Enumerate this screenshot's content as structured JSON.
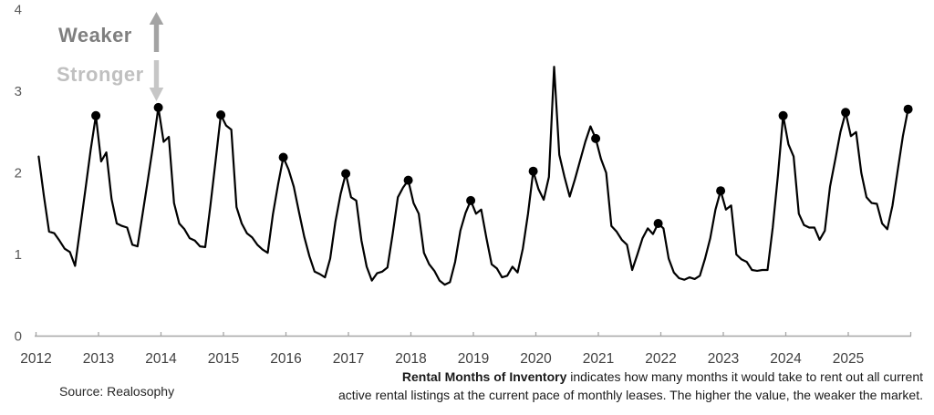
{
  "annotations": {
    "weaker_label": "Weaker",
    "stronger_label": "Stronger",
    "weaker_arrow_icon": "up-arrow",
    "stronger_arrow_icon": "down-arrow"
  },
  "source_note": "Source: Realosophy",
  "caption": {
    "bold_lead": "Rental Months of Inventory",
    "line1_rest": " indicates how many months it would take to rent out all current",
    "line2": "active rental listings at the current pace of monthly leases. The higher the value, the weaker the market."
  },
  "palette": {
    "line": "#000000",
    "marker": "#000000",
    "axis": "#a6a6a6",
    "x_label": "#404040",
    "y_label": "#595959",
    "weaker_text": "#7f7f7f",
    "weaker_arrow": "#a3a3a3",
    "stronger_text": "#c0c0c0",
    "stronger_arrow": "#c6c6c6"
  },
  "chart_data": {
    "type": "line",
    "title": "Rental Months of Inventory",
    "xlabel": "",
    "ylabel": "",
    "x_unit": "month",
    "x_start": "2012-01",
    "x_end": "2025-12",
    "ylim": [
      0,
      4
    ],
    "y_tick_labels": [
      "0",
      "1",
      "2",
      "3",
      "4"
    ],
    "x_tick_labels": [
      "2012",
      "2013",
      "2014",
      "2015",
      "2016",
      "2017",
      "2018",
      "2019",
      "2020",
      "2021",
      "2022",
      "2023",
      "2024",
      "2025"
    ],
    "gridlines": false,
    "legend": "none",
    "monthly_values_jan_to_dec_by_year": {
      "2012": [
        2.2,
        1.72,
        1.28,
        1.26,
        1.17,
        1.07,
        1.03,
        0.86,
        1.33,
        1.8,
        2.28,
        2.7
      ],
      "2013": [
        2.14,
        2.25,
        1.68,
        1.38,
        1.35,
        1.33,
        1.12,
        1.1,
        1.51,
        1.92,
        2.34,
        2.8
      ],
      "2014": [
        2.38,
        2.44,
        1.63,
        1.38,
        1.31,
        1.2,
        1.17,
        1.1,
        1.09,
        1.6,
        2.15,
        2.71
      ],
      "2015": [
        2.58,
        2.53,
        1.58,
        1.38,
        1.26,
        1.21,
        1.12,
        1.06,
        1.02,
        1.49,
        1.86,
        2.19
      ],
      "2016": [
        2.04,
        1.83,
        1.52,
        1.22,
        0.98,
        0.79,
        0.76,
        0.72,
        0.95,
        1.4,
        1.74,
        1.99
      ],
      "2017": [
        1.7,
        1.66,
        1.17,
        0.85,
        0.68,
        0.77,
        0.79,
        0.84,
        1.25,
        1.7,
        1.82,
        1.91
      ],
      "2018": [
        1.63,
        1.5,
        1.02,
        0.88,
        0.8,
        0.68,
        0.63,
        0.66,
        0.91,
        1.29,
        1.51,
        1.66
      ],
      "2019": [
        1.5,
        1.55,
        1.2,
        0.88,
        0.83,
        0.72,
        0.74,
        0.85,
        0.78,
        1.07,
        1.5,
        2.02
      ],
      "2020": [
        1.8,
        1.67,
        1.95,
        3.3,
        2.22,
        1.95,
        1.71,
        1.92,
        2.15,
        2.38,
        2.57,
        2.42
      ],
      "2021": [
        2.17,
        2.0,
        1.35,
        1.28,
        1.18,
        1.12,
        0.81,
        1.0,
        1.2,
        1.32,
        1.25,
        1.38
      ],
      "2022": [
        1.32,
        0.95,
        0.78,
        0.71,
        0.69,
        0.72,
        0.7,
        0.74,
        0.95,
        1.2,
        1.55,
        1.78
      ],
      "2023": [
        1.55,
        1.6,
        1.0,
        0.94,
        0.91,
        0.81,
        0.8,
        0.81,
        0.81,
        1.33,
        1.97,
        2.7
      ],
      "2024": [
        2.35,
        2.2,
        1.5,
        1.36,
        1.33,
        1.33,
        1.18,
        1.29,
        1.83,
        2.16,
        2.5,
        2.74
      ],
      "2025": [
        2.45,
        2.5,
        2.0,
        1.7,
        1.63,
        1.62,
        1.38,
        1.31,
        1.6,
        2.03,
        2.45,
        2.78
      ]
    },
    "peak_markers": [
      {
        "year": "2012",
        "month": 12,
        "value": 2.7
      },
      {
        "year": "2013",
        "month": 12,
        "value": 2.8
      },
      {
        "year": "2014",
        "month": 12,
        "value": 2.71
      },
      {
        "year": "2015",
        "month": 12,
        "value": 2.19
      },
      {
        "year": "2016",
        "month": 12,
        "value": 1.99
      },
      {
        "year": "2017",
        "month": 12,
        "value": 1.91
      },
      {
        "year": "2018",
        "month": 12,
        "value": 1.66
      },
      {
        "year": "2019",
        "month": 12,
        "value": 2.02
      },
      {
        "year": "2020",
        "month": 12,
        "value": 2.42
      },
      {
        "year": "2021",
        "month": 12,
        "value": 1.38
      },
      {
        "year": "2022",
        "month": 12,
        "value": 1.78
      },
      {
        "year": "2023",
        "month": 12,
        "value": 2.7
      },
      {
        "year": "2024",
        "month": 12,
        "value": 2.74
      },
      {
        "year": "2025",
        "month": 12,
        "value": 2.78
      }
    ],
    "notable_points": [
      {
        "date": "2020-04",
        "value": 3.3,
        "note": "spike high"
      }
    ]
  }
}
